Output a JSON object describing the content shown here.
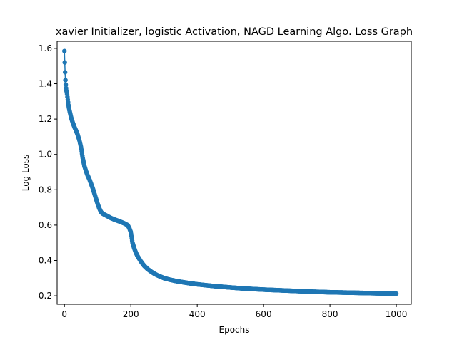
{
  "chart_data": {
    "type": "line",
    "title": "xavier Initializer, logistic Activation, NAGD Learning Algo. Loss Graph",
    "xlabel": "Epochs",
    "ylabel": "Log Loss",
    "xlim": [
      -22,
      1045
    ],
    "ylim": [
      0.152,
      1.64
    ],
    "xticks": [
      0,
      200,
      400,
      600,
      800,
      1000
    ],
    "yticks": [
      0.2,
      0.4,
      0.6,
      0.8,
      1.0,
      1.2,
      1.4,
      1.6
    ],
    "xtick_labels": [
      "0",
      "200",
      "400",
      "600",
      "800",
      "1000"
    ],
    "ytick_labels": [
      "0.2",
      "0.4",
      "0.6",
      "0.8",
      "1.0",
      "1.2",
      "1.4",
      "1.6"
    ],
    "grid": false,
    "marker": "circle",
    "color": "#1f77b4",
    "series": [
      {
        "name": "",
        "x": [
          0,
          1,
          2,
          3,
          4,
          5,
          6,
          8,
          10,
          12,
          15,
          20,
          25,
          30,
          35,
          40,
          45,
          50,
          55,
          60,
          65,
          70,
          75,
          80,
          85,
          90,
          95,
          100,
          105,
          110,
          115,
          120,
          125,
          130,
          140,
          150,
          160,
          170,
          180,
          190,
          195,
          200,
          205,
          210,
          215,
          220,
          230,
          240,
          250,
          260,
          270,
          280,
          290,
          300,
          320,
          340,
          360,
          380,
          400,
          450,
          500,
          550,
          600,
          650,
          700,
          750,
          800,
          850,
          900,
          950,
          1000
        ],
        "y": [
          1.585,
          1.52,
          1.465,
          1.42,
          1.395,
          1.375,
          1.36,
          1.34,
          1.31,
          1.28,
          1.25,
          1.21,
          1.18,
          1.155,
          1.135,
          1.11,
          1.08,
          1.04,
          0.98,
          0.935,
          0.905,
          0.88,
          0.86,
          0.835,
          0.81,
          0.78,
          0.75,
          0.72,
          0.695,
          0.675,
          0.665,
          0.66,
          0.655,
          0.65,
          0.64,
          0.632,
          0.625,
          0.618,
          0.61,
          0.6,
          0.585,
          0.56,
          0.5,
          0.47,
          0.445,
          0.425,
          0.395,
          0.37,
          0.352,
          0.338,
          0.326,
          0.316,
          0.308,
          0.3,
          0.29,
          0.282,
          0.276,
          0.27,
          0.265,
          0.255,
          0.247,
          0.24,
          0.235,
          0.231,
          0.227,
          0.223,
          0.22,
          0.218,
          0.216,
          0.214,
          0.212
        ]
      }
    ]
  }
}
